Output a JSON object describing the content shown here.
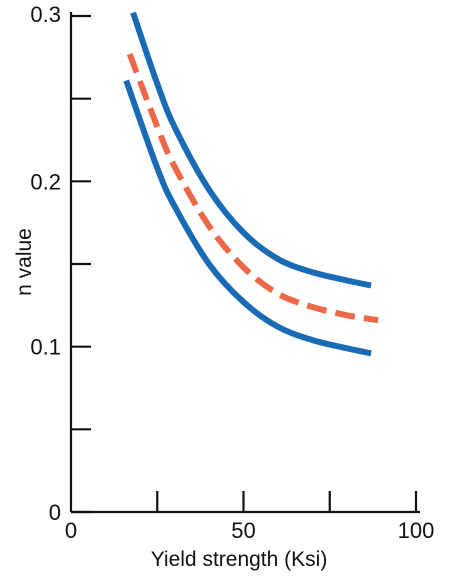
{
  "chart_data": {
    "type": "line",
    "title": "",
    "xlabel": "Yield strength (Ksi)",
    "ylabel": "n value",
    "xlim": [
      0,
      100
    ],
    "ylim": [
      0,
      0.3
    ],
    "x_ticks": [
      0,
      25,
      50,
      75,
      100
    ],
    "x_tick_labels": [
      "0",
      "",
      "50",
      "",
      "100"
    ],
    "y_ticks": [
      0,
      0.05,
      0.1,
      0.15,
      0.2,
      0.25,
      0.3
    ],
    "y_tick_labels": [
      "0",
      "",
      "0.1",
      "",
      "0.2",
      "",
      "0.3"
    ],
    "grid": false,
    "legend": "none",
    "series": [
      {
        "color": "#1a6bb5",
        "style": "solid",
        "points": [
          [
            18,
            0.302
          ],
          [
            25,
            0.259
          ],
          [
            30,
            0.233
          ],
          [
            40,
            0.195
          ],
          [
            50,
            0.169
          ],
          [
            60,
            0.153
          ],
          [
            70,
            0.145
          ],
          [
            80,
            0.14
          ],
          [
            87,
            0.137
          ]
        ]
      },
      {
        "color": "#ec6847",
        "style": "dashed",
        "points": [
          [
            17,
            0.277
          ],
          [
            25,
            0.233
          ],
          [
            30,
            0.209
          ],
          [
            40,
            0.173
          ],
          [
            50,
            0.148
          ],
          [
            60,
            0.132
          ],
          [
            70,
            0.124
          ],
          [
            80,
            0.119
          ],
          [
            89,
            0.116
          ]
        ]
      },
      {
        "color": "#1a6bb5",
        "style": "solid",
        "points": [
          [
            16,
            0.261
          ],
          [
            25,
            0.208
          ],
          [
            30,
            0.185
          ],
          [
            40,
            0.15
          ],
          [
            50,
            0.127
          ],
          [
            60,
            0.112
          ],
          [
            70,
            0.104
          ],
          [
            80,
            0.099
          ],
          [
            87,
            0.096
          ]
        ]
      }
    ]
  }
}
